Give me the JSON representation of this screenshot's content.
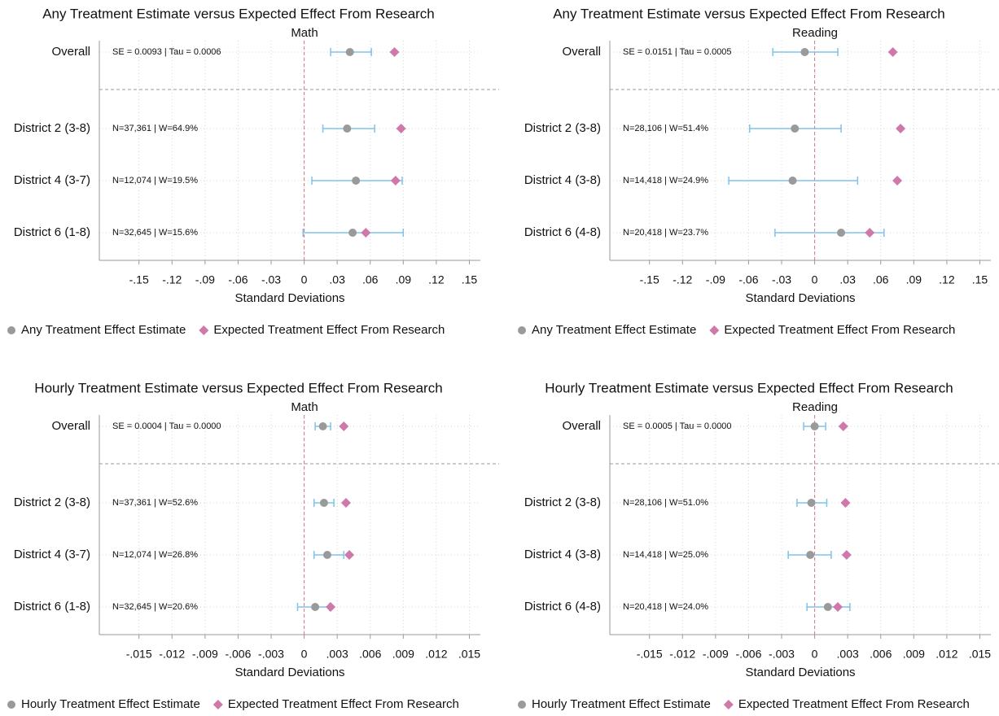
{
  "chart_data": [
    {
      "type": "forest",
      "title": "Any Treatment Estimate versus Expected Effect From Research",
      "subtitle": "Math",
      "xlabel": "Standard Deviations",
      "categories": [
        "Overall",
        "District 2 (3-8)",
        "District 4 (3-7)",
        "District 6 (1-8)"
      ],
      "row_labels": [
        "SE = 0.0093 | Tau = 0.0006",
        "N=37,361 | W=64.9%",
        "N=12,074 | W=19.5%",
        "N=32,645 | W=15.6%"
      ],
      "series": [
        {
          "name": "Any Treatment Effect Estimate",
          "color": "#9a9a9a",
          "ci_color": "#7ec3ea",
          "values": [
            0.0415,
            0.039,
            0.047,
            0.044
          ],
          "ci_low": [
            0.024,
            0.017,
            0.007,
            -0.001
          ],
          "ci_high": [
            0.061,
            0.064,
            0.089,
            0.09
          ]
        },
        {
          "name": "Expected Treatment Effect From Research",
          "color": "#cf78aa",
          "values": [
            0.082,
            0.088,
            0.083,
            0.056
          ]
        }
      ],
      "xlim": [
        -0.186,
        0.16
      ],
      "xticks": [
        {
          "value": -0.15,
          "label": "-.15"
        },
        {
          "value": -0.12,
          "label": "-.12"
        },
        {
          "value": -0.09,
          "label": "-.09"
        },
        {
          "value": -0.06,
          "label": "-.06"
        },
        {
          "value": -0.03,
          "label": "-.03"
        },
        0,
        {
          "value": 0.03,
          "label": ".03"
        },
        {
          "value": 0.06,
          "label": ".06"
        },
        {
          "value": 0.09,
          "label": ".09"
        },
        {
          "value": 0.12,
          "label": ".12"
        },
        {
          "value": 0.15,
          "label": ".15"
        }
      ],
      "grid": true
    },
    {
      "type": "forest",
      "title": "Any Treatment Estimate versus Expected Effect From Research",
      "subtitle": "Reading",
      "xlabel": "Standard Deviations",
      "categories": [
        "Overall",
        "District 2 (3-8)",
        "District 4 (3-8)",
        "District 6 (4-8)"
      ],
      "row_labels": [
        "SE = 0.0151 | Tau = 0.0005",
        "N=28,106 | W=51.4%",
        "N=14,418 | W=24.9%",
        "N=20,418 | W=23.7%"
      ],
      "series": [
        {
          "name": "Any Treatment Effect Estimate",
          "color": "#9a9a9a",
          "ci_color": "#7ec3ea",
          "values": [
            -0.009,
            -0.018,
            -0.02,
            0.024
          ],
          "ci_low": [
            -0.038,
            -0.059,
            -0.078,
            -0.036
          ],
          "ci_high": [
            0.021,
            0.024,
            0.039,
            0.063
          ]
        },
        {
          "name": "Expected Treatment Effect From Research",
          "color": "#cf78aa",
          "values": [
            0.071,
            0.078,
            0.075,
            0.05
          ]
        }
      ],
      "xlim": [
        -0.186,
        0.16
      ],
      "xticks": [
        {
          "value": -0.15,
          "label": "-.15"
        },
        {
          "value": -0.12,
          "label": "-.12"
        },
        {
          "value": -0.09,
          "label": "-.09"
        },
        {
          "value": -0.06,
          "label": "-.06"
        },
        {
          "value": -0.03,
          "label": "-.03"
        },
        0,
        {
          "value": 0.03,
          "label": ".03"
        },
        {
          "value": 0.06,
          "label": ".06"
        },
        {
          "value": 0.09,
          "label": ".09"
        },
        {
          "value": 0.12,
          "label": ".12"
        },
        {
          "value": 0.15,
          "label": ".15"
        }
      ],
      "grid": true
    },
    {
      "type": "forest",
      "title": "Hourly Treatment Estimate versus Expected Effect From Research",
      "subtitle": "Math",
      "xlabel": "Standard Deviations",
      "categories": [
        "Overall",
        "District 2 (3-8)",
        "District 4 (3-7)",
        "District 6 (1-8)"
      ],
      "row_labels": [
        "SE = 0.0004 | Tau = 0.0000",
        "N=37,361 | W=52.6%",
        "N=12,074 | W=26.8%",
        "N=32,645 | W=20.6%"
      ],
      "series": [
        {
          "name": "Hourly Treatment Effect Estimate",
          "color": "#9a9a9a",
          "ci_color": "#7ec3ea",
          "values": [
            0.0017,
            0.0018,
            0.0021,
            0.001
          ],
          "ci_low": [
            0.001,
            0.0009,
            0.0009,
            -0.0006
          ],
          "ci_high": [
            0.0024,
            0.0027,
            0.0036,
            0.0023
          ]
        },
        {
          "name": "Expected Treatment Effect From Research",
          "color": "#cf78aa",
          "values": [
            0.0036,
            0.0038,
            0.0041,
            0.0024
          ]
        }
      ],
      "xlim": [
        -0.0186,
        0.016
      ],
      "xticks": [
        {
          "value": -0.015,
          "label": "-.015"
        },
        {
          "value": -0.012,
          "label": "-.012"
        },
        {
          "value": -0.009,
          "label": "-.009"
        },
        {
          "value": -0.006,
          "label": "-.006"
        },
        {
          "value": -0.003,
          "label": "-.003"
        },
        0,
        {
          "value": 0.003,
          "label": ".003"
        },
        {
          "value": 0.006,
          "label": ".006"
        },
        {
          "value": 0.009,
          "label": ".009"
        },
        {
          "value": 0.012,
          "label": ".012"
        },
        {
          "value": 0.015,
          "label": ".015"
        }
      ],
      "grid": true
    },
    {
      "type": "forest",
      "title": "Hourly Treatment Estimate versus Expected Effect From Research",
      "subtitle": "Reading",
      "xlabel": "Standard Deviations",
      "categories": [
        "Overall",
        "District 2 (3-8)",
        "District 4 (3-8)",
        "District 6 (4-8)"
      ],
      "row_labels": [
        "SE = 0.0005 | Tau = 0.0000",
        "N=28,106 | W=51.0%",
        "N=14,418 | W=25.0%",
        "N=20,418 | W=24.0%"
      ],
      "series": [
        {
          "name": "Hourly Treatment Effect Estimate",
          "color": "#9a9a9a",
          "ci_color": "#7ec3ea",
          "values": [
            0.0,
            -0.0003,
            -0.0004,
            0.0012
          ],
          "ci_low": [
            -0.001,
            -0.0016,
            -0.0024,
            -0.0007
          ],
          "ci_high": [
            0.001,
            0.0011,
            0.0015,
            0.0032
          ]
        },
        {
          "name": "Expected Treatment Effect From Research",
          "color": "#cf78aa",
          "values": [
            0.0026,
            0.0028,
            0.0029,
            0.0021
          ]
        }
      ],
      "xlim": [
        -0.0186,
        0.016
      ],
      "xticks": [
        {
          "value": -0.015,
          "label": "-.015"
        },
        {
          "value": -0.012,
          "label": "-.012"
        },
        {
          "value": -0.009,
          "label": "-.009"
        },
        {
          "value": -0.006,
          "label": "-.006"
        },
        {
          "value": -0.003,
          "label": "-.003"
        },
        0,
        {
          "value": 0.003,
          "label": ".003"
        },
        {
          "value": 0.006,
          "label": ".006"
        },
        {
          "value": 0.009,
          "label": ".009"
        },
        {
          "value": 0.012,
          "label": ".012"
        },
        {
          "value": 0.015,
          "label": ".015"
        }
      ],
      "grid": true
    }
  ]
}
